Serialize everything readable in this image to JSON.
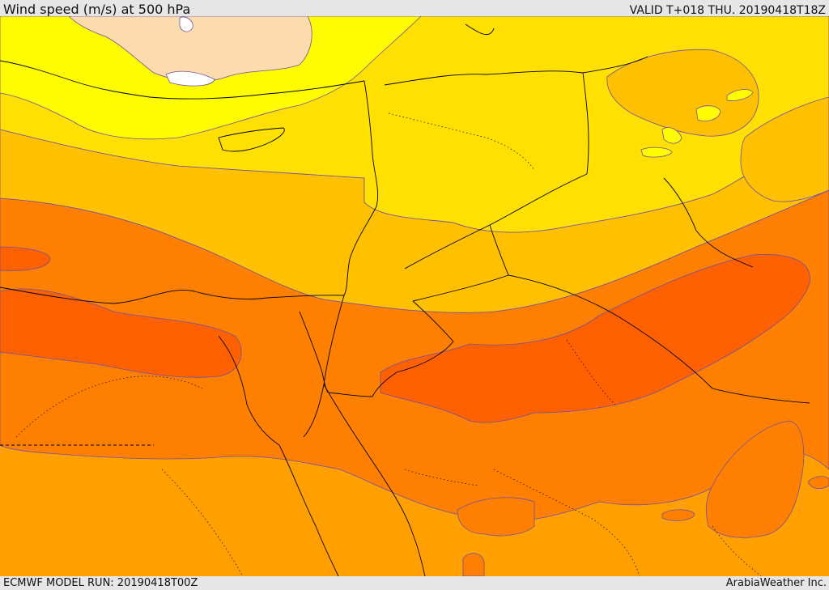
{
  "header": {
    "title": "Wind speed (m/s) at 500 hPa",
    "valid": "VALID T+018 THU. 20190418T18Z"
  },
  "footer": {
    "model_run": "ECMWF MODEL RUN: 20190418T00Z",
    "credit": "ArabiaWeather Inc."
  },
  "map": {
    "field": "wind speed",
    "level": "500 hPa",
    "colors": {
      "white": "#ffffff",
      "peach": "#fcdcac",
      "yellow_light": "#fffc00",
      "yellow": "#ffe000",
      "gold": "#ffc000",
      "orange_light": "#ffa000",
      "orange": "#ff8000",
      "orange_dark": "#ff6000",
      "contour": "#7050a0",
      "border": "#000000"
    }
  }
}
